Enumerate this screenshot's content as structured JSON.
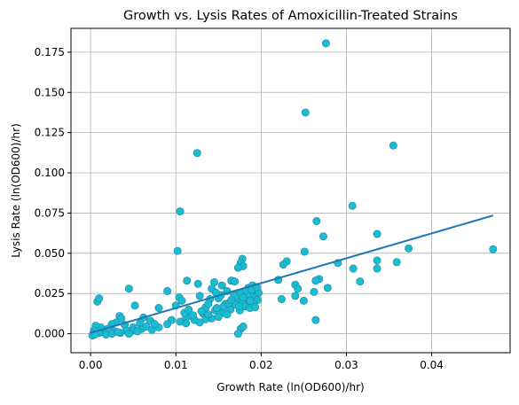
{
  "chart_data": {
    "type": "scatter",
    "title": "Growth vs. Lysis Rates of Amoxicillin-Treated Strains",
    "xlabel": "Growth Rate (ln(OD600)/hr)",
    "ylabel": "Lysis Rate (ln(OD600)/hr)",
    "xlim": [
      -0.0023,
      0.0492
    ],
    "ylim": [
      -0.0118,
      0.1898
    ],
    "xticks": [
      0.0,
      0.01,
      0.02,
      0.03,
      0.04
    ],
    "xtick_labels": [
      "0.00",
      "0.01",
      "0.02",
      "0.03",
      "0.04"
    ],
    "yticks": [
      0.0,
      0.025,
      0.05,
      0.075,
      0.1,
      0.125,
      0.15,
      0.175
    ],
    "ytick_labels": [
      "0.000",
      "0.025",
      "0.050",
      "0.075",
      "0.100",
      "0.125",
      "0.150",
      "0.175"
    ],
    "grid": true,
    "legend": "none",
    "point_color": "#17becf",
    "point_edge_color": "#2c7fa8",
    "line_color": "#1f77b4",
    "fit_line": {
      "x": [
        0.0,
        0.0472
      ],
      "y": [
        0.0005,
        0.0735
      ]
    },
    "points": [
      [
        0.0276,
        0.1805
      ],
      [
        0.0252,
        0.1375
      ],
      [
        0.0355,
        0.117
      ],
      [
        0.0125,
        0.1123
      ],
      [
        0.0307,
        0.0795
      ],
      [
        0.0105,
        0.076
      ],
      [
        0.0265,
        0.07
      ],
      [
        0.0273,
        0.0605
      ],
      [
        0.0336,
        0.062
      ],
      [
        0.0472,
        0.0525
      ],
      [
        0.0373,
        0.053
      ],
      [
        0.0102,
        0.0515
      ],
      [
        0.0251,
        0.051
      ],
      [
        0.0336,
        0.0455
      ],
      [
        0.0359,
        0.0445
      ],
      [
        0.029,
        0.044
      ],
      [
        0.023,
        0.045
      ],
      [
        0.0226,
        0.043
      ],
      [
        0.0308,
        0.0405
      ],
      [
        0.0336,
        0.0405
      ],
      [
        0.0178,
        0.0465
      ],
      [
        0.0176,
        0.044
      ],
      [
        0.0179,
        0.042
      ],
      [
        0.0173,
        0.041
      ],
      [
        0.0316,
        0.0325
      ],
      [
        0.0268,
        0.034
      ],
      [
        0.0264,
        0.033
      ],
      [
        0.024,
        0.0305
      ],
      [
        0.0243,
        0.028
      ],
      [
        0.0278,
        0.0285
      ],
      [
        0.0262,
        0.026
      ],
      [
        0.024,
        0.0235
      ],
      [
        0.022,
        0.0335
      ],
      [
        0.0224,
        0.0215
      ],
      [
        0.025,
        0.0205
      ],
      [
        0.0264,
        0.0085
      ],
      [
        0.0113,
        0.033
      ],
      [
        0.0126,
        0.031
      ],
      [
        0.0145,
        0.032
      ],
      [
        0.0142,
        0.028
      ],
      [
        0.0154,
        0.03
      ],
      [
        0.0165,
        0.033
      ],
      [
        0.0169,
        0.0325
      ],
      [
        0.0128,
        0.0235
      ],
      [
        0.014,
        0.0215
      ],
      [
        0.016,
        0.0265
      ],
      [
        0.015,
        0.022
      ],
      [
        0.0135,
        0.0165
      ],
      [
        0.0132,
        0.0125
      ],
      [
        0.0142,
        0.0095
      ],
      [
        0.0155,
        0.013
      ],
      [
        0.0164,
        0.015
      ],
      [
        0.0172,
        0.02
      ],
      [
        0.0158,
        0.0185
      ],
      [
        0.0168,
        0.0245
      ],
      [
        0.018,
        0.026
      ],
      [
        0.0185,
        0.0285
      ],
      [
        0.019,
        0.03
      ],
      [
        0.0192,
        0.0275
      ],
      [
        0.0188,
        0.024
      ],
      [
        0.0182,
        0.0215
      ],
      [
        0.0178,
        0.0195
      ],
      [
        0.0185,
        0.018
      ],
      [
        0.019,
        0.02
      ],
      [
        0.0194,
        0.023
      ],
      [
        0.0196,
        0.021
      ],
      [
        0.0197,
        0.0255
      ],
      [
        0.0181,
        0.017
      ],
      [
        0.0187,
        0.016
      ],
      [
        0.0175,
        0.0145
      ],
      [
        0.016,
        0.012
      ],
      [
        0.015,
        0.0105
      ],
      [
        0.0146,
        0.0145
      ],
      [
        0.0176,
        0.003
      ],
      [
        0.0173,
        0.0
      ],
      [
        0.0179,
        0.0045
      ],
      [
        0.009,
        0.0265
      ],
      [
        0.0104,
        0.0225
      ],
      [
        0.0107,
        0.0205
      ],
      [
        0.01,
        0.0175
      ],
      [
        0.0095,
        0.0085
      ],
      [
        0.0105,
        0.0075
      ],
      [
        0.0112,
        0.01
      ],
      [
        0.0118,
        0.011
      ],
      [
        0.0122,
        0.0085
      ],
      [
        0.0128,
        0.007
      ],
      [
        0.0135,
        0.009
      ],
      [
        0.0112,
        0.0065
      ],
      [
        0.009,
        0.006
      ],
      [
        0.008,
        0.016
      ],
      [
        0.0062,
        0.01
      ],
      [
        0.007,
        0.008
      ],
      [
        0.0045,
        0.028
      ],
      [
        0.0052,
        0.0175
      ],
      [
        0.0034,
        0.011
      ],
      [
        0.0036,
        0.0095
      ],
      [
        0.003,
        0.007
      ],
      [
        0.0025,
        0.006
      ],
      [
        0.004,
        0.0055
      ],
      [
        0.005,
        0.004
      ],
      [
        0.0058,
        0.0065
      ],
      [
        0.006,
        0.003
      ],
      [
        0.0065,
        0.0045
      ],
      [
        0.0072,
        0.0025
      ],
      [
        0.008,
        0.004
      ],
      [
        0.0075,
        0.006
      ],
      [
        0.005,
        0.002
      ],
      [
        0.0042,
        0.002
      ],
      [
        0.0035,
        0.0005
      ],
      [
        0.0028,
        0.0015
      ],
      [
        0.002,
        0.003
      ],
      [
        0.0015,
        0.001
      ],
      [
        0.001,
        0.0005
      ],
      [
        0.0012,
        0.004
      ],
      [
        0.0008,
        0.02
      ],
      [
        0.001,
        0.022
      ],
      [
        0.0006,
        0.005
      ],
      [
        0.0004,
        0.002
      ],
      [
        0.0003,
        0.0
      ],
      [
        0.0002,
        -0.001
      ],
      [
        0.0005,
        -0.0005
      ],
      [
        0.0018,
        -0.0005
      ],
      [
        0.0025,
        0.0
      ],
      [
        0.0032,
        0.001
      ],
      [
        0.0045,
        0.0
      ],
      [
        0.0055,
        0.0015
      ],
      [
        0.011,
        0.013
      ],
      [
        0.0115,
        0.015
      ],
      [
        0.012,
        0.0115
      ],
      [
        0.013,
        0.014
      ],
      [
        0.0138,
        0.012
      ],
      [
        0.0148,
        0.016
      ],
      [
        0.0156,
        0.017
      ],
      [
        0.0162,
        0.019
      ],
      [
        0.017,
        0.023
      ],
      [
        0.0176,
        0.0255
      ],
      [
        0.0183,
        0.0265
      ],
      [
        0.0189,
        0.0275
      ],
      [
        0.0195,
        0.029
      ],
      [
        0.0184,
        0.023
      ],
      [
        0.0191,
        0.0185
      ],
      [
        0.017,
        0.018
      ],
      [
        0.0165,
        0.021
      ],
      [
        0.0153,
        0.024
      ],
      [
        0.0147,
        0.0255
      ],
      [
        0.0138,
        0.0185
      ],
      [
        0.0193,
        0.0165
      ],
      [
        0.0187,
        0.0205
      ],
      [
        0.0179,
        0.0225
      ],
      [
        0.0174,
        0.017
      ]
    ]
  }
}
